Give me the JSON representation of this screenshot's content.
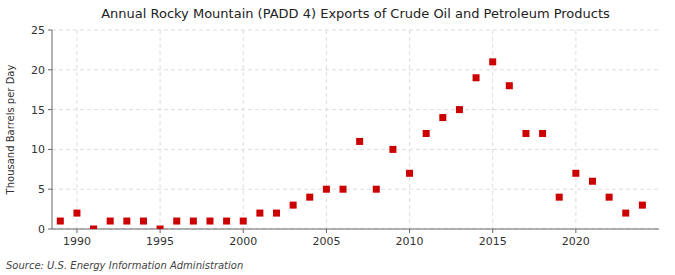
{
  "chart_data": {
    "type": "scatter",
    "title": "Annual Rocky Mountain (PADD 4) Exports of Crude Oil and Petroleum Products",
    "ylabel": "Thousand Barrels per Day",
    "annotations": [
      "Source: U.S. Energy Information Administration"
    ],
    "x": [
      1989,
      1990,
      1991,
      1992,
      1993,
      1994,
      1995,
      1996,
      1997,
      1998,
      1999,
      2000,
      2001,
      2002,
      2003,
      2004,
      2005,
      2006,
      2007,
      2008,
      2009,
      2010,
      2011,
      2012,
      2013,
      2014,
      2015,
      2016,
      2017,
      2018,
      2019,
      2020,
      2021,
      2022,
      2023,
      2024
    ],
    "values": [
      1,
      2,
      0,
      1,
      1,
      1,
      0,
      1,
      1,
      1,
      1,
      1,
      2,
      2,
      3,
      4,
      5,
      5,
      11,
      5,
      10,
      7,
      12,
      14,
      15,
      19,
      21,
      18,
      12,
      12,
      4,
      7,
      6,
      4,
      2,
      3
    ],
    "color": "#cc0000",
    "marker": "square",
    "xlim": [
      1988.5,
      2025
    ],
    "ylim": [
      0,
      25
    ],
    "xticks": [
      1990,
      1995,
      2000,
      2005,
      2010,
      2015,
      2020
    ],
    "yticks": [
      0,
      5,
      10,
      15,
      20,
      25
    ],
    "grid": true
  }
}
